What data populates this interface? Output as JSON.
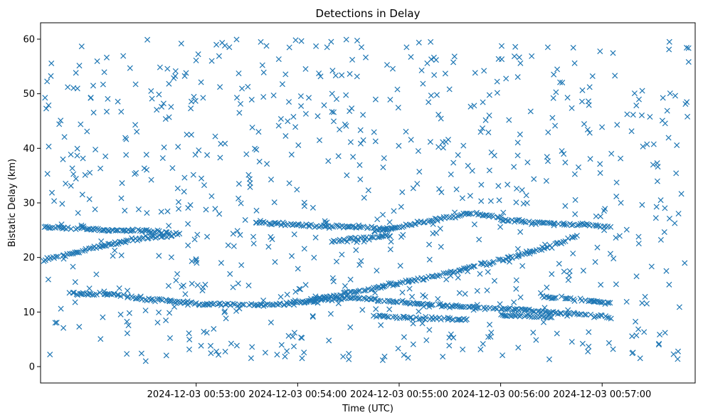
{
  "chart_data": {
    "type": "scatter",
    "title": "Detections in Delay",
    "xlabel": "Time (UTC)",
    "ylabel": "Bistatic Delay (km)",
    "marker": "x",
    "color": "#1f77b4",
    "x_unit": "seconds after 2024-12-03 00:52:00",
    "xlim": [
      -32,
      355
    ],
    "ylim": [
      -3,
      63
    ],
    "xticks": [
      {
        "value": 60,
        "label": "2024-12-03 00:53:00"
      },
      {
        "value": 120,
        "label": "2024-12-03 00:54:00"
      },
      {
        "value": 180,
        "label": "2024-12-03 00:55:00"
      },
      {
        "value": 240,
        "label": "2024-12-03 00:56:00"
      },
      {
        "value": 300,
        "label": "2024-12-03 00:57:00"
      }
    ],
    "yticks": [
      0,
      10,
      20,
      30,
      40,
      50,
      60
    ],
    "tracks": [
      {
        "name": "track-lower",
        "x": [
          -15,
          10,
          30,
          45,
          60,
          75,
          90,
          105,
          120,
          150,
          180,
          210,
          240,
          270,
          290,
          300,
          305
        ],
        "y": [
          13.5,
          13.2,
          12.5,
          12.0,
          11.6,
          11.4,
          11.3,
          11.4,
          11.8,
          12.7,
          11.8,
          11.1,
          10.6,
          10.0,
          9.5,
          9.2,
          9.0
        ]
      },
      {
        "name": "track-rise",
        "x": [
          125,
          150,
          180,
          210,
          240,
          270,
          285
        ],
        "y": [
          12.0,
          13.5,
          15.2,
          17.2,
          19.5,
          22.0,
          24.0
        ]
      },
      {
        "name": "track-upper-left",
        "x": [
          -30,
          -10,
          10,
          30,
          45,
          50
        ],
        "y": [
          19.5,
          21.0,
          22.5,
          23.6,
          24.1,
          24.3
        ]
      },
      {
        "name": "track-25-left",
        "x": [
          -30,
          -10,
          10,
          30,
          45
        ],
        "y": [
          25.5,
          25.3,
          25.0,
          24.8,
          24.5
        ]
      },
      {
        "name": "track-26-mid",
        "x": [
          95,
          110,
          130,
          150,
          165,
          175
        ],
        "y": [
          26.5,
          26.2,
          25.8,
          25.6,
          25.4,
          25.3
        ]
      },
      {
        "name": "track-23-mid",
        "x": [
          140,
          160,
          175
        ],
        "y": [
          23.0,
          23.5,
          24.0
        ]
      },
      {
        "name": "track-rise-upper",
        "x": [
          165,
          180,
          195,
          210,
          220,
          230,
          240
        ],
        "y": [
          24.8,
          25.5,
          26.5,
          27.5,
          28.0,
          27.8,
          27.3
        ]
      },
      {
        "name": "track-upper-right",
        "x": [
          240,
          255,
          270,
          285,
          300,
          305
        ],
        "y": [
          27.0,
          26.5,
          26.2,
          26.0,
          25.8,
          25.6
        ]
      },
      {
        "name": "track-9-mid",
        "x": [
          165,
          180,
          195,
          210,
          220
        ],
        "y": [
          9.2,
          9.0,
          8.9,
          8.8,
          8.5
        ]
      },
      {
        "name": "track-12-right",
        "x": [
          265,
          280,
          295,
          305
        ],
        "y": [
          12.8,
          12.5,
          12.0,
          11.7
        ]
      },
      {
        "name": "track-9-right",
        "x": [
          240,
          255,
          270
        ],
        "y": [
          9.5,
          9.3,
          9.1
        ]
      }
    ],
    "clutter": {
      "count": 760,
      "x_range": [
        -30,
        352
      ],
      "y_range": [
        1,
        60
      ],
      "seed": 20241203
    }
  }
}
